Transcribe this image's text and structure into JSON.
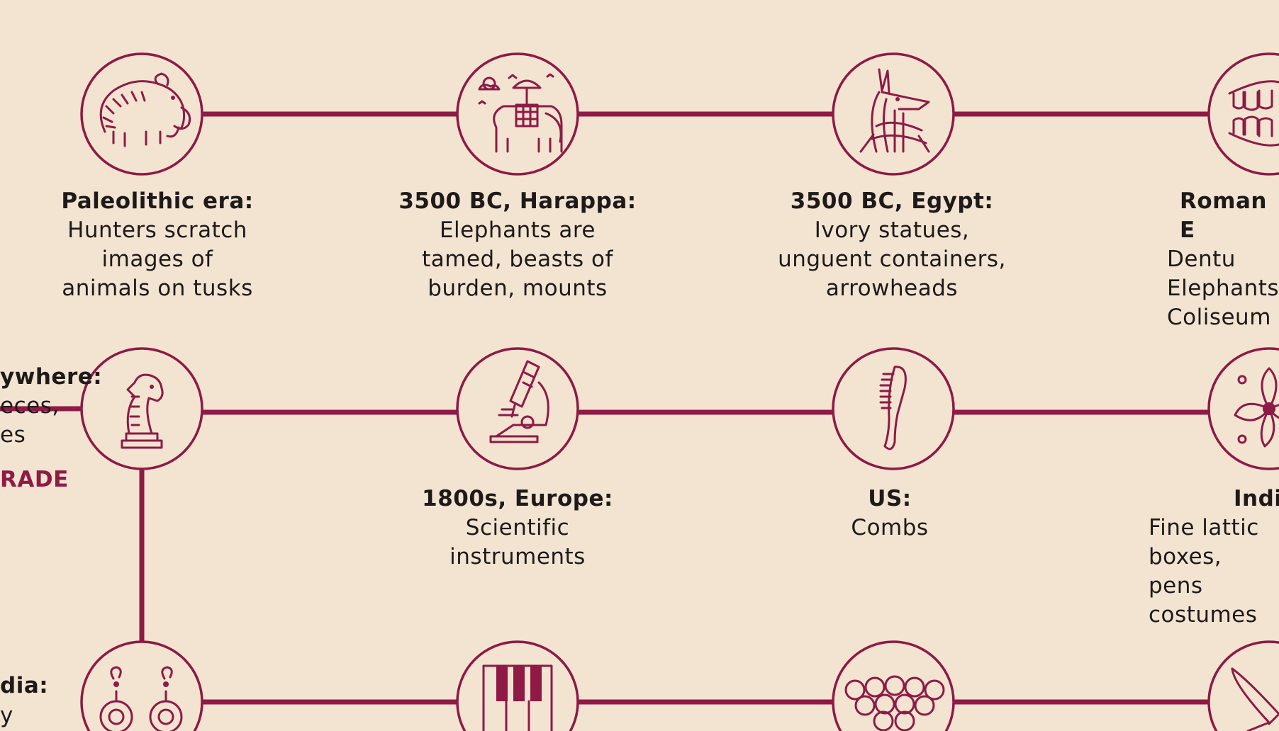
{
  "colors": {
    "background": "#f3e4d2",
    "accent": "#8e1a45",
    "text": "#1e1a1a"
  },
  "row1": [
    {
      "icon": "mammoth-icon",
      "head": "Paleolithic era:",
      "body": "Hunters scratch\nimages of\nanimals on tusks"
    },
    {
      "icon": "elephant-icon",
      "head": "3500 BC, Harappa:",
      "body": "Elephants are\ntamed, beasts of\nburden, mounts"
    },
    {
      "icon": "anubis-icon",
      "head": "3500 BC, Egypt:",
      "body": "Ivory statues,\nunguent containers,\narrowheads"
    },
    {
      "icon": "dentures-icon",
      "head": "Roman E",
      "body": "Dentu\nElephants\nColiseum"
    }
  ],
  "row2": [
    {
      "icon": "chess-knight-icon"
    },
    {
      "icon": "microscope-icon",
      "head": "1800s, Europe:",
      "body": "Scientific\ninstruments"
    },
    {
      "icon": "comb-icon",
      "head": "US:",
      "body": "Combs"
    },
    {
      "icon": "lattice-flower-icon",
      "head": "Indi",
      "body": "Fine lattic\nboxes, pens\ncostumes"
    }
  ],
  "row2_left": {
    "head": "ywhere:",
    "line1": "eces,",
    "line2": "es",
    "accent": "RADE"
  },
  "row3": [
    {
      "icon": "earrings-icon"
    },
    {
      "icon": "piano-keys-icon"
    },
    {
      "icon": "billiard-balls-icon"
    },
    {
      "icon": "crossed-knives-icon"
    }
  ],
  "row3_left": {
    "head": "dia:",
    "line1": "y"
  }
}
